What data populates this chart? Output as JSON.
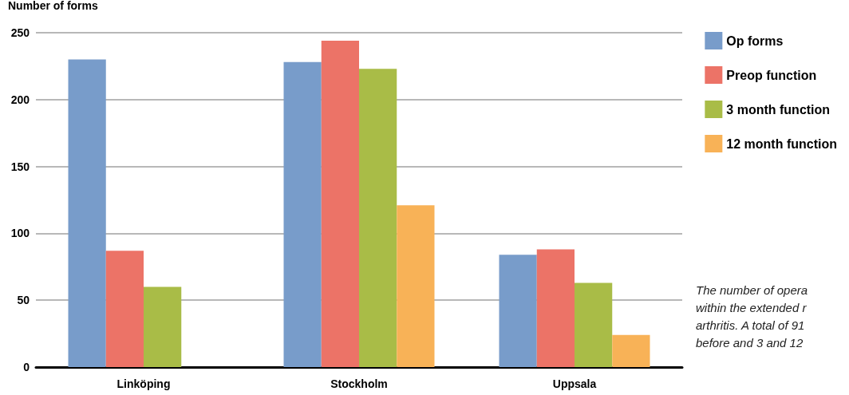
{
  "chart_data": {
    "type": "bar",
    "ylabel": "Number of forms",
    "categories": [
      "Linköping",
      "Stockholm",
      "Uppsala"
    ],
    "series": [
      {
        "name": "Op forms",
        "color": "#789cca",
        "values": [
          230,
          228,
          84
        ]
      },
      {
        "name": "Preop function",
        "color": "#ec7367",
        "values": [
          87,
          244,
          88
        ]
      },
      {
        "name": "3 month function",
        "color": "#a9bc47",
        "values": [
          60,
          223,
          63
        ]
      },
      {
        "name": "12 month function",
        "color": "#f8b257",
        "values": [
          null,
          121,
          24
        ]
      }
    ],
    "ylim": [
      0,
      250
    ],
    "yticks": [
      0,
      50,
      100,
      150,
      200,
      250
    ],
    "grid": "y",
    "legend": "right",
    "annotations": [
      "The number of opera\nwithin the extended r\narthritis. A total of 91\nbefore and 3 and 12"
    ]
  }
}
